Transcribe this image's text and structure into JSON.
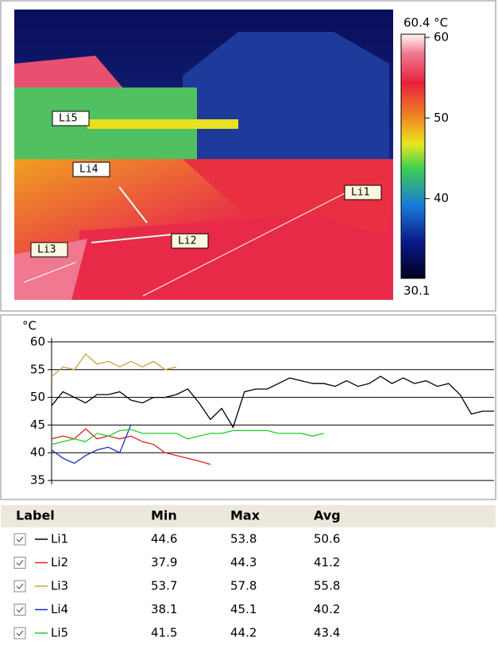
{
  "image": {
    "labels": [
      "Li1",
      "Li2",
      "Li3",
      "Li4",
      "Li5"
    ]
  },
  "colorbar": {
    "min": 30.1,
    "max": {
      "value": 60.4,
      "label": "60.4 °C"
    },
    "ticks": [
      60,
      50,
      40
    ]
  },
  "chart_data": {
    "type": "line",
    "y_label": "°C",
    "ylim": [
      33,
      62
    ],
    "yticks": [
      60,
      55,
      50,
      45,
      40,
      35
    ],
    "grid": true,
    "series": [
      {
        "name": "Li1",
        "color": "#000000",
        "values": [
          48.5,
          51,
          50,
          49,
          50.5,
          50.5,
          51,
          49.5,
          49,
          50,
          50,
          50.5,
          51.5,
          49,
          46,
          48,
          44.6,
          51,
          51.5,
          51.5,
          52.5,
          53.5,
          53,
          52.5,
          52.5,
          52,
          53,
          52,
          52.5,
          53.8,
          52.5,
          53.5,
          52.5,
          53,
          52,
          52.5,
          50.5,
          47,
          47.5,
          47.5
        ]
      },
      {
        "name": "Li2",
        "color": "#e0201c",
        "values": [
          42.5,
          43,
          42.5,
          44.3,
          42.5,
          43,
          42.5,
          43,
          42,
          41.5,
          40,
          39.5,
          39,
          38.5,
          37.9,
          null,
          null,
          null,
          null,
          null,
          null,
          null,
          null,
          null,
          null,
          null,
          null,
          null,
          null,
          null,
          null,
          null,
          null,
          null,
          null,
          null,
          null,
          null,
          null,
          null
        ]
      },
      {
        "name": "Li3",
        "color": "#c9a23a",
        "values": [
          53.7,
          55.5,
          55,
          57.8,
          56,
          56.5,
          55.5,
          56.5,
          55.5,
          56.5,
          55,
          55.5,
          null,
          null,
          null,
          null,
          null,
          null,
          null,
          null,
          null,
          null,
          null,
          null,
          null,
          null,
          null,
          null,
          null,
          null,
          null,
          null,
          null,
          null,
          null,
          null,
          null,
          null,
          null,
          null
        ]
      },
      {
        "name": "Li4",
        "color": "#1a2fc0",
        "values": [
          40.5,
          39,
          38.1,
          39.5,
          40.5,
          41,
          40,
          45.1,
          null,
          null,
          null,
          null,
          null,
          null,
          null,
          null,
          null,
          null,
          null,
          null,
          null,
          null,
          null,
          null,
          null,
          null,
          null,
          null,
          null,
          null,
          null,
          null,
          null,
          null,
          null,
          null,
          null,
          null,
          null,
          null
        ]
      },
      {
        "name": "Li5",
        "color": "#22cc22",
        "values": [
          41.5,
          42,
          42.5,
          42,
          43.5,
          43,
          44,
          44.2,
          43.5,
          43.5,
          43.5,
          43.5,
          42.5,
          43,
          43.5,
          43.5,
          44,
          44,
          44,
          44,
          43.5,
          43.5,
          43.5,
          43,
          43.5,
          null,
          null,
          null,
          null,
          null,
          null,
          null,
          null,
          null,
          null,
          null,
          null,
          null,
          null,
          null
        ]
      }
    ]
  },
  "table": {
    "header": [
      "Label",
      "Min",
      "Max",
      "Avg"
    ],
    "rows": [
      {
        "min": 44.6,
        "max": 53.8,
        "avg": 50.6
      },
      {
        "min": 37.9,
        "max": 44.3,
        "avg": 41.2
      },
      {
        "min": 53.7,
        "max": 57.8,
        "avg": 55.8
      },
      {
        "min": 38.1,
        "max": 45.1,
        "avg": 40.2
      },
      {
        "min": 41.5,
        "max": 44.2,
        "avg": 43.4
      }
    ]
  }
}
